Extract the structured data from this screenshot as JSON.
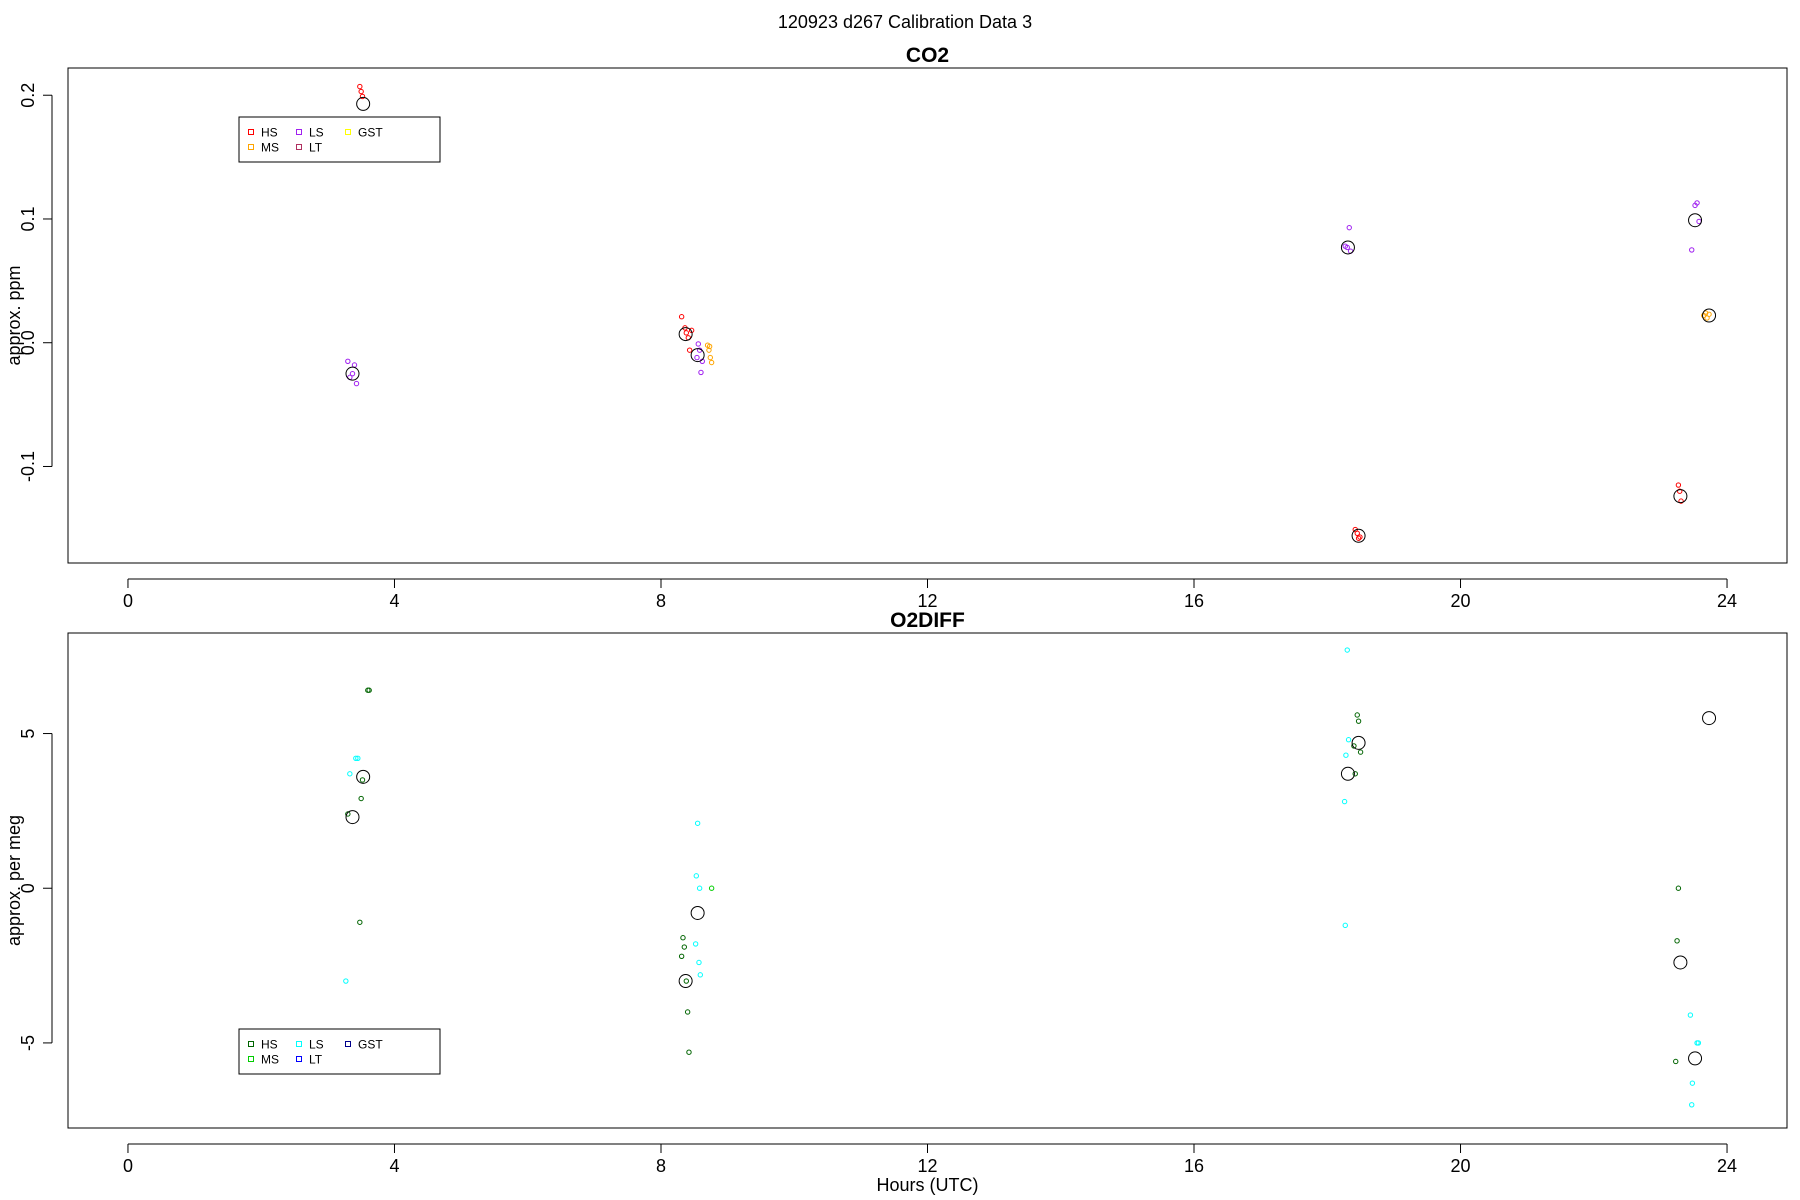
{
  "figure_title": "120923   d267   Calibration Data 3",
  "xlabel_shared": "Hours (UTC)",
  "colors": {
    "axis": "#000000",
    "mean_marker": "#000000"
  },
  "chart_data": [
    {
      "type": "scatter",
      "title": "CO2",
      "xlabel": "",
      "ylabel": "approx. ppm",
      "xlim": [
        -0.9,
        24.9
      ],
      "ylim": [
        -0.178,
        0.222
      ],
      "xticks": [
        0,
        4,
        8,
        12,
        16,
        20,
        24
      ],
      "yticks": [
        -0.1,
        0.0,
        0.1,
        0.2
      ],
      "ytick_labels": [
        "-0.1",
        "0.0",
        "0.1",
        "0.2"
      ],
      "grid": false,
      "legend": {
        "placement": "top-left",
        "entries": [
          {
            "label": "HS",
            "color": "#ff0000"
          },
          {
            "label": "MS",
            "color": "#ffa500"
          },
          {
            "label": "LS",
            "color": "#a020f0"
          },
          {
            "label": "LT",
            "color": "#b03060"
          },
          {
            "label": "GST",
            "color": "#ffff00"
          }
        ]
      },
      "series": [
        {
          "name": "HS",
          "color": "#ff0000",
          "points": [
            [
              3.48,
              0.207
            ],
            [
              3.5,
              0.203
            ],
            [
              3.52,
              0.199
            ],
            [
              8.31,
              0.021
            ],
            [
              8.36,
              0.012
            ],
            [
              8.38,
              0.008
            ],
            [
              8.41,
              0.004
            ],
            [
              8.43,
              -0.006
            ],
            [
              8.46,
              0.01
            ],
            [
              18.42,
              -0.151
            ],
            [
              18.45,
              -0.154
            ],
            [
              18.47,
              -0.158
            ],
            [
              18.49,
              -0.157
            ],
            [
              23.27,
              -0.115
            ],
            [
              23.29,
              -0.12
            ],
            [
              23.31,
              -0.128
            ]
          ]
        },
        {
          "name": "MS",
          "color": "#ffa500",
          "points": [
            [
              8.7,
              -0.002
            ],
            [
              8.72,
              -0.006
            ],
            [
              8.74,
              -0.012
            ],
            [
              8.76,
              -0.016
            ],
            [
              8.73,
              -0.003
            ],
            [
              23.65,
              0.022
            ],
            [
              23.68,
              0.024
            ],
            [
              23.7,
              0.02
            ],
            [
              23.73,
              0.023
            ]
          ]
        },
        {
          "name": "LS",
          "color": "#a020f0",
          "points": [
            [
              3.3,
              -0.015
            ],
            [
              3.33,
              -0.028
            ],
            [
              3.4,
              -0.018
            ],
            [
              3.43,
              -0.033
            ],
            [
              3.37,
              -0.025
            ],
            [
              8.56,
              -0.001
            ],
            [
              8.58,
              -0.006
            ],
            [
              8.6,
              -0.024
            ],
            [
              8.54,
              -0.012
            ],
            [
              8.62,
              -0.015
            ],
            [
              18.3,
              0.077
            ],
            [
              18.33,
              0.093
            ],
            [
              18.35,
              0.074
            ],
            [
              18.27,
              0.078
            ],
            [
              23.47,
              0.075
            ],
            [
              23.52,
              0.111
            ],
            [
              23.55,
              0.113
            ],
            [
              23.58,
              0.098
            ]
          ]
        },
        {
          "name": "LT",
          "color": "#b03060",
          "points": []
        },
        {
          "name": "GST",
          "color": "#ffff00",
          "points": []
        }
      ],
      "means": [
        [
          3.53,
          0.193
        ],
        [
          3.37,
          -0.025
        ],
        [
          8.37,
          0.007
        ],
        [
          8.55,
          -0.01
        ],
        [
          18.31,
          0.077
        ],
        [
          18.47,
          -0.156
        ],
        [
          23.3,
          -0.124
        ],
        [
          23.52,
          0.099
        ],
        [
          23.73,
          0.022
        ]
      ]
    },
    {
      "type": "scatter",
      "title": "O2DIFF",
      "xlabel": "Hours (UTC)",
      "ylabel": "approx. per meg",
      "xlim": [
        -0.9,
        24.9
      ],
      "ylim": [
        -7.75,
        8.25
      ],
      "xticks": [
        0,
        4,
        8,
        12,
        16,
        20,
        24
      ],
      "yticks": [
        -5,
        0,
        5
      ],
      "ytick_labels": [
        "-5",
        "0",
        "5"
      ],
      "grid": false,
      "legend": {
        "placement": "bottom-left",
        "entries": [
          {
            "label": "HS",
            "color": "#006400"
          },
          {
            "label": "MS",
            "color": "#00cd00"
          },
          {
            "label": "LS",
            "color": "#00ffff"
          },
          {
            "label": "LT",
            "color": "#0000ff"
          },
          {
            "label": "GST",
            "color": "#00008b"
          }
        ]
      },
      "series": [
        {
          "name": "HS",
          "color": "#006400",
          "points": [
            [
              3.6,
              6.4
            ],
            [
              3.62,
              6.4
            ],
            [
              3.5,
              2.9
            ],
            [
              3.48,
              -1.1
            ],
            [
              3.52,
              3.5
            ],
            [
              3.3,
              2.4
            ],
            [
              8.33,
              -1.6
            ],
            [
              8.35,
              -1.9
            ],
            [
              8.31,
              -2.2
            ],
            [
              8.38,
              -3.0
            ],
            [
              8.4,
              -4.0
            ],
            [
              8.42,
              -5.3
            ],
            [
              18.45,
              5.6
            ],
            [
              18.47,
              5.4
            ],
            [
              18.5,
              4.4
            ],
            [
              18.4,
              4.6
            ],
            [
              18.42,
              3.7
            ],
            [
              23.27,
              0.0
            ],
            [
              23.25,
              -1.7
            ],
            [
              23.23,
              -5.6
            ]
          ]
        },
        {
          "name": "MS",
          "color": "#00cd00",
          "points": [
            [
              8.76,
              0.0
            ]
          ]
        },
        {
          "name": "LS",
          "color": "#00ffff",
          "points": [
            [
              3.42,
              4.2
            ],
            [
              3.45,
              4.2
            ],
            [
              3.33,
              3.7
            ],
            [
              3.27,
              -3.0
            ],
            [
              8.55,
              2.1
            ],
            [
              8.53,
              0.4
            ],
            [
              8.58,
              0.0
            ],
            [
              8.52,
              -1.8
            ],
            [
              8.57,
              -2.4
            ],
            [
              8.59,
              -2.8
            ],
            [
              18.3,
              7.7
            ],
            [
              18.32,
              4.8
            ],
            [
              18.28,
              4.3
            ],
            [
              18.26,
              2.8
            ],
            [
              18.27,
              -1.2
            ],
            [
              23.45,
              -4.1
            ],
            [
              23.55,
              -5.0
            ],
            [
              23.57,
              -5.0
            ],
            [
              23.48,
              -6.3
            ],
            [
              23.47,
              -7.0
            ]
          ]
        },
        {
          "name": "LT",
          "color": "#0000ff",
          "points": []
        },
        {
          "name": "GST",
          "color": "#00008b",
          "points": []
        }
      ],
      "means": [
        [
          3.53,
          3.6
        ],
        [
          3.37,
          2.3
        ],
        [
          8.37,
          -3.0
        ],
        [
          8.55,
          -0.8
        ],
        [
          18.31,
          3.7
        ],
        [
          18.47,
          4.7
        ],
        [
          23.3,
          -2.4
        ],
        [
          23.52,
          -5.5
        ],
        [
          23.73,
          5.5
        ]
      ]
    }
  ]
}
